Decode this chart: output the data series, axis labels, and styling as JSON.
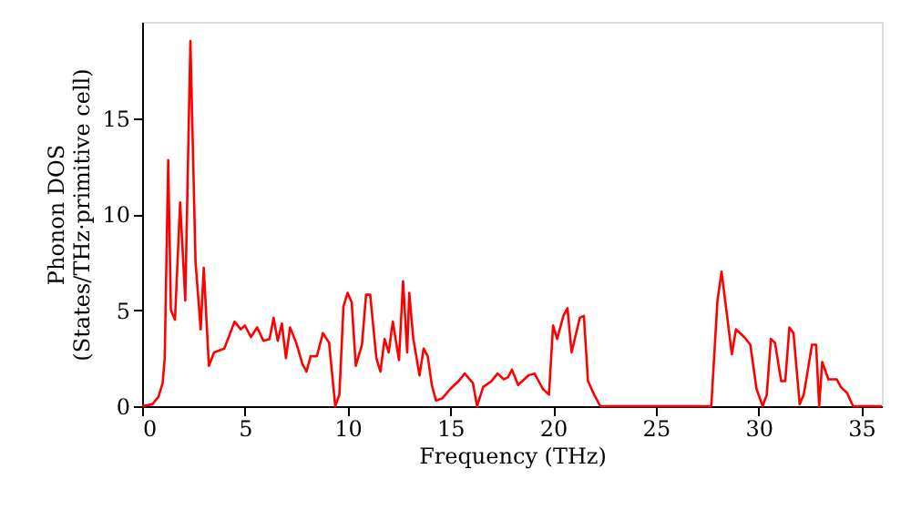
{
  "chart_data": {
    "type": "line",
    "xlabel": "Frequency (THz)",
    "ylabel": "Phonon DOS\n(States/THz·primitive cell)",
    "x": [
      0,
      0.5,
      0.8,
      1.0,
      1.1,
      1.27,
      1.4,
      1.6,
      1.85,
      2.1,
      2.35,
      2.6,
      2.85,
      3.0,
      3.25,
      3.5,
      4.0,
      4.5,
      4.8,
      5.0,
      5.3,
      5.6,
      5.9,
      6.2,
      6.4,
      6.6,
      6.8,
      7.0,
      7.2,
      7.5,
      7.8,
      8.0,
      8.2,
      8.5,
      8.8,
      9.1,
      9.4,
      9.6,
      9.8,
      10.0,
      10.2,
      10.4,
      10.7,
      10.9,
      11.1,
      11.4,
      11.6,
      11.8,
      12.0,
      12.2,
      12.5,
      12.7,
      12.9,
      13.0,
      13.2,
      13.5,
      13.7,
      13.9,
      14.1,
      14.3,
      14.6,
      15.0,
      15.4,
      15.7,
      16.1,
      16.3,
      16.6,
      17.0,
      17.3,
      17.6,
      17.8,
      18.0,
      18.3,
      18.8,
      19.1,
      19.5,
      19.8,
      20.0,
      20.2,
      20.5,
      20.7,
      20.9,
      21.3,
      21.5,
      21.7,
      22.0,
      22.3,
      27.7,
      28.0,
      28.2,
      28.7,
      28.9,
      29.3,
      29.6,
      29.9,
      30.2,
      30.4,
      30.6,
      30.8,
      31.1,
      31.3,
      31.5,
      31.7,
      32.0,
      32.2,
      32.6,
      32.8,
      32.95,
      33.1,
      33.4,
      33.8,
      34.0,
      34.3,
      34.6,
      36
    ],
    "series": [
      {
        "color": "#ff0000",
        "values": [
          0,
          0.1,
          0.5,
          1.2,
          2.5,
          12.8,
          5.0,
          4.5,
          10.6,
          5.5,
          19.0,
          7.5,
          4.0,
          7.2,
          2.1,
          2.8,
          3.0,
          4.4,
          4.0,
          4.2,
          3.6,
          4.1,
          3.4,
          3.5,
          4.6,
          3.4,
          4.3,
          2.5,
          4.1,
          3.3,
          2.2,
          1.8,
          2.6,
          2.6,
          3.8,
          3.3,
          0,
          0.6,
          5.2,
          5.9,
          5.4,
          2.1,
          3.2,
          5.8,
          5.8,
          2.5,
          1.8,
          3.5,
          2.8,
          4.4,
          2.4,
          6.5,
          2.8,
          5.9,
          3.5,
          1.6,
          3.0,
          2.6,
          1.1,
          0.3,
          0.4,
          0.9,
          1.3,
          1.7,
          1.2,
          0,
          1.0,
          1.3,
          1.7,
          1.4,
          1.5,
          1.9,
          1.1,
          1.6,
          1.7,
          0.9,
          0.6,
          4.2,
          3.5,
          4.7,
          5.1,
          2.8,
          4.6,
          4.7,
          1.3,
          0.6,
          0,
          0,
          5.5,
          7.0,
          2.7,
          4.0,
          3.6,
          3.2,
          0.9,
          0,
          0.6,
          3.5,
          3.3,
          1.3,
          1.3,
          4.1,
          3.8,
          0.1,
          0.6,
          3.2,
          3.2,
          0,
          2.3,
          1.4,
          1.4,
          1.0,
          0.7,
          0,
          0
        ]
      }
    ],
    "xlim": [
      0,
      36
    ],
    "ylim": [
      0,
      20
    ],
    "xticks": [
      0,
      5,
      10,
      15,
      20,
      25,
      30,
      35
    ],
    "yticks": [
      0,
      5,
      10,
      15
    ],
    "grid": false,
    "marker": "none",
    "line_style": "solid"
  }
}
